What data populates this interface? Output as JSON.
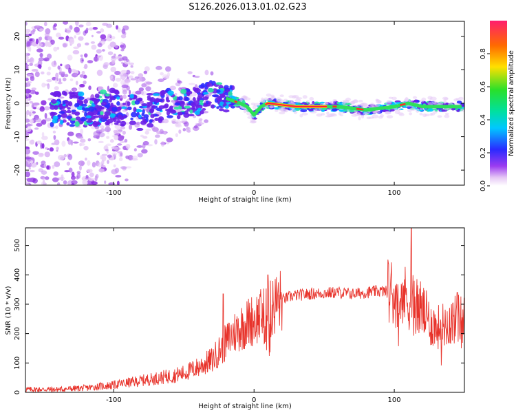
{
  "figure": {
    "title": "S126.2026.013.01.02.G23"
  },
  "colors": {
    "snr_line": "#e8332b",
    "axis": "#000000",
    "background": "#ffffff"
  },
  "chart_data": [
    {
      "type": "heatmap",
      "xlabel": "Height of straight line (km)",
      "ylabel": "Frequency (Hz)",
      "xlim": [
        -163,
        150
      ],
      "ylim": [
        -24.5,
        24.5
      ],
      "xticks": [
        -100,
        0,
        100
      ],
      "yticks": [
        -20,
        -10,
        0,
        10,
        20
      ],
      "colorbar": {
        "label": "Normalized spectral amplitude",
        "range": [
          0.0,
          1.0
        ],
        "ticks": [
          0.0,
          0.2,
          0.4,
          0.6,
          0.8
        ]
      },
      "ridge": {
        "x": [
          -140,
          -120,
          -100,
          -80,
          -60,
          -40,
          -30,
          -20,
          -10,
          -5,
          0,
          5,
          10,
          30,
          60,
          80,
          100,
          110,
          120,
          150
        ],
        "y": [
          -1.5,
          -2,
          -1,
          -3,
          -0.5,
          0.5,
          3,
          1.5,
          0,
          -1,
          -3.5,
          -1,
          0,
          -1,
          -1,
          -2,
          -1,
          0,
          -1,
          -1
        ]
      },
      "scatter_noise_region": [
        -163,
        -110
      ]
    },
    {
      "type": "line",
      "xlabel": "Height of straight line (km)",
      "ylabel": "SNR (10 * v/v)",
      "xlim": [
        -163,
        150
      ],
      "ylim": [
        0,
        560
      ],
      "xticks": [
        -100,
        0,
        100
      ],
      "yticks": [
        0,
        100,
        200,
        300,
        400,
        500
      ],
      "series": [
        {
          "name": "SNR",
          "x": [
            -163,
            -140,
            -120,
            -100,
            -80,
            -60,
            -50,
            -40,
            -30,
            -25,
            -20,
            -15,
            -10,
            -5,
            0,
            5,
            10,
            15,
            20,
            25,
            30,
            40,
            50,
            60,
            70,
            80,
            90,
            100,
            105,
            110,
            115,
            120,
            125,
            130,
            140,
            150
          ],
          "y": [
            10,
            10,
            15,
            25,
            40,
            55,
            65,
            85,
            110,
            140,
            170,
            200,
            220,
            235,
            250,
            260,
            270,
            300,
            315,
            325,
            330,
            335,
            338,
            340,
            335,
            340,
            345,
            340,
            330,
            320,
            305,
            280,
            240,
            220,
            240,
            260
          ]
        }
      ],
      "spikes": [
        {
          "x": -22,
          "y": 335
        },
        {
          "x": 10,
          "y": 400
        },
        {
          "x": 112,
          "y": 560
        },
        {
          "x": 145,
          "y": 340
        }
      ]
    }
  ]
}
